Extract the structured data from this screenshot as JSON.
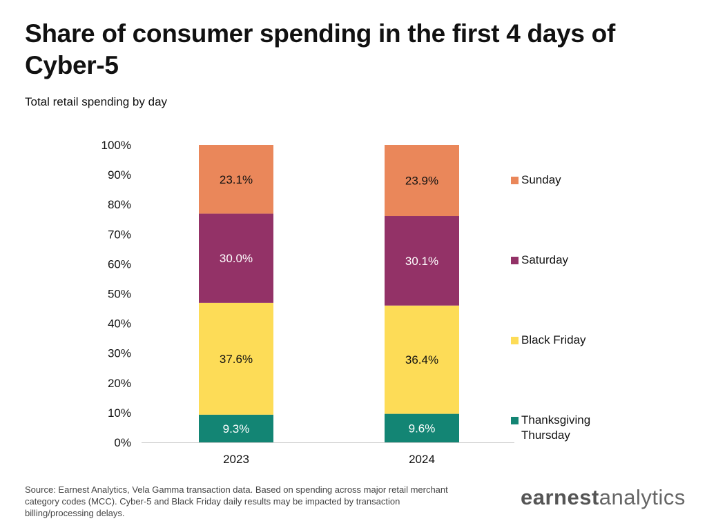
{
  "title": "Share of consumer spending in the first 4 days of Cyber-5",
  "subtitle": "Total retail spending by day",
  "source": "Source: Earnest Analytics, Vela Gamma transaction data. Based on spending across major retail merchant category codes (MCC). Cyber-5 and Black Friday daily results may be impacted by transaction billing/processing delays.",
  "logo": {
    "bold": "earnest",
    "light": "analytics"
  },
  "chart_data": {
    "type": "bar",
    "stacked": true,
    "categories": [
      "2023",
      "2024"
    ],
    "series": [
      {
        "name": "Thanksgiving Thursday",
        "values": [
          9.3,
          9.6
        ],
        "labels": [
          "9.3%",
          "9.6%"
        ],
        "color": "#138574",
        "label_color": "#ffffff"
      },
      {
        "name": "Black Friday",
        "values": [
          37.6,
          36.4
        ],
        "labels": [
          "37.6%",
          "36.4%"
        ],
        "color": "#fddc57",
        "label_color": "#111111"
      },
      {
        "name": "Saturday",
        "values": [
          30.0,
          30.1
        ],
        "labels": [
          "30.0%",
          "30.1%"
        ],
        "color": "#933267",
        "label_color": "#ffffff"
      },
      {
        "name": "Sunday",
        "values": [
          23.1,
          23.9
        ],
        "labels": [
          "23.1%",
          "23.9%"
        ],
        "color": "#ea875a",
        "label_color": "#111111"
      }
    ],
    "ylim": [
      0,
      100
    ],
    "yticks": [
      "0%",
      "10%",
      "20%",
      "30%",
      "40%",
      "50%",
      "60%",
      "70%",
      "80%",
      "90%",
      "100%"
    ],
    "legend_position": "right",
    "legend_order": [
      "Sunday",
      "Saturday",
      "Black Friday",
      "Thanksgiving Thursday"
    ],
    "grid": false
  }
}
